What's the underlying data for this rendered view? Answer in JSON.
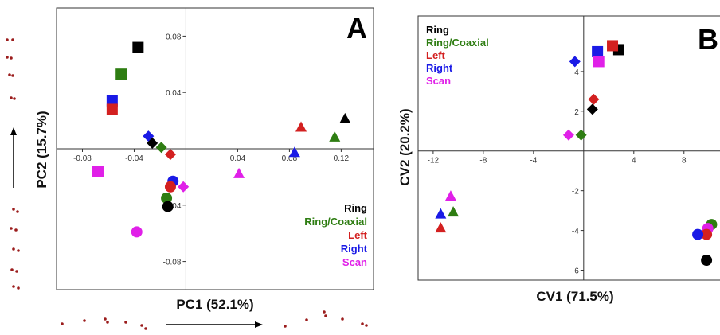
{
  "chart_data": [
    {
      "type": "scatter",
      "panel_label": "A",
      "xlabel": "PC1 (52.1%)",
      "ylabel": "PC2 (15.7%)",
      "xlim": [
        -0.1,
        0.145
      ],
      "ylim": [
        -0.1,
        0.1
      ],
      "x_ticks": [
        -0.08,
        -0.04,
        0.04,
        0.08,
        0.12
      ],
      "x_tick_labels": [
        "-0.08",
        "-0.04",
        "0.04",
        "0.08",
        "0.12"
      ],
      "y_ticks": [
        0.08,
        0.04,
        -0.04,
        -0.08
      ],
      "y_tick_labels": [
        "0.08",
        "0.04",
        "-0.04",
        "-0.08"
      ],
      "legend_position": "bottom-right",
      "legend": [
        {
          "label": "Ring",
          "color": "#000000"
        },
        {
          "label": "Ring/Coaxial",
          "color": "#2e7d12"
        },
        {
          "label": "Left",
          "color": "#d32020"
        },
        {
          "label": "Right",
          "color": "#1a1ae6"
        },
        {
          "label": "Scan",
          "color": "#e020e8"
        }
      ],
      "points": [
        {
          "group": "Ring",
          "shape": "square",
          "x": -0.037,
          "y": 0.072
        },
        {
          "group": "Ring/Coaxial",
          "shape": "square",
          "x": -0.05,
          "y": 0.053
        },
        {
          "group": "Right",
          "shape": "square",
          "x": -0.057,
          "y": 0.034
        },
        {
          "group": "Left",
          "shape": "square",
          "x": -0.057,
          "y": 0.028
        },
        {
          "group": "Scan",
          "shape": "square",
          "x": -0.068,
          "y": -0.016
        },
        {
          "group": "Right",
          "shape": "diamond",
          "x": -0.029,
          "y": 0.009
        },
        {
          "group": "Ring",
          "shape": "diamond",
          "x": -0.026,
          "y": 0.004
        },
        {
          "group": "Ring/Coaxial",
          "shape": "diamond",
          "x": -0.019,
          "y": 0.001
        },
        {
          "group": "Left",
          "shape": "diamond",
          "x": -0.012,
          "y": -0.004
        },
        {
          "group": "Scan",
          "shape": "diamond",
          "x": -0.002,
          "y": -0.027
        },
        {
          "group": "Right",
          "shape": "circle",
          "x": -0.01,
          "y": -0.023
        },
        {
          "group": "Left",
          "shape": "circle",
          "x": -0.012,
          "y": -0.027
        },
        {
          "group": "Ring/Coaxial",
          "shape": "circle",
          "x": -0.015,
          "y": -0.035
        },
        {
          "group": "Ring",
          "shape": "circle",
          "x": -0.014,
          "y": -0.041
        },
        {
          "group": "Scan",
          "shape": "circle",
          "x": -0.038,
          "y": -0.059
        },
        {
          "group": "Scan",
          "shape": "triangle",
          "x": 0.041,
          "y": -0.018
        },
        {
          "group": "Left",
          "shape": "triangle",
          "x": 0.089,
          "y": 0.015
        },
        {
          "group": "Right",
          "shape": "triangle",
          "x": 0.084,
          "y": -0.003
        },
        {
          "group": "Ring/Coaxial",
          "shape": "triangle",
          "x": 0.115,
          "y": 0.008
        },
        {
          "group": "Ring",
          "shape": "triangle",
          "x": 0.123,
          "y": 0.021
        }
      ]
    },
    {
      "type": "scatter",
      "panel_label": "B",
      "xlabel": "CV1 (71.5%)",
      "ylabel": "CV2 (20.2%)",
      "xlim": [
        -13.2,
        11
      ],
      "ylim": [
        -6.5,
        6.8
      ],
      "x_ticks": [
        -12,
        -8,
        -4,
        4,
        8
      ],
      "x_tick_labels": [
        "-12",
        "-8",
        "-4",
        "4",
        "8"
      ],
      "y_ticks": [
        4,
        2,
        -2,
        -4,
        -6
      ],
      "y_tick_labels": [
        "4",
        "2",
        "-2",
        "-4",
        "-6"
      ],
      "legend_position": "top-left",
      "legend": [
        {
          "label": "Ring",
          "color": "#000000"
        },
        {
          "label": "Ring/Coaxial",
          "color": "#2e7d12"
        },
        {
          "label": "Left",
          "color": "#d32020"
        },
        {
          "label": "Right",
          "color": "#1a1ae6"
        },
        {
          "label": "Scan",
          "color": "#e020e8"
        }
      ],
      "points": [
        {
          "group": "Ring",
          "shape": "square",
          "x": 2.8,
          "y": 5.1
        },
        {
          "group": "Left",
          "shape": "square",
          "x": 2.3,
          "y": 5.3
        },
        {
          "group": "Right",
          "shape": "square",
          "x": 1.1,
          "y": 5.0
        },
        {
          "group": "Scan",
          "shape": "square",
          "x": 1.2,
          "y": 4.5
        },
        {
          "group": "Right",
          "shape": "diamond",
          "x": -0.7,
          "y": 4.5
        },
        {
          "group": "Left",
          "shape": "diamond",
          "x": 0.8,
          "y": 2.6
        },
        {
          "group": "Ring",
          "shape": "diamond",
          "x": 0.7,
          "y": 2.1
        },
        {
          "group": "Scan",
          "shape": "diamond",
          "x": -1.2,
          "y": 0.8
        },
        {
          "group": "Ring/Coaxial",
          "shape": "diamond",
          "x": -0.2,
          "y": 0.8
        },
        {
          "group": "Scan",
          "shape": "triangle",
          "x": -10.6,
          "y": -2.3
        },
        {
          "group": "Ring/Coaxial",
          "shape": "triangle",
          "x": -10.4,
          "y": -3.1
        },
        {
          "group": "Right",
          "shape": "triangle",
          "x": -11.4,
          "y": -3.2
        },
        {
          "group": "Left",
          "shape": "triangle",
          "x": -11.4,
          "y": -3.9
        },
        {
          "group": "Ring/Coaxial",
          "shape": "circle",
          "x": 10.2,
          "y": -3.7
        },
        {
          "group": "Scan",
          "shape": "circle",
          "x": 9.9,
          "y": -3.9
        },
        {
          "group": "Left",
          "shape": "circle",
          "x": 9.8,
          "y": -4.2
        },
        {
          "group": "Right",
          "shape": "circle",
          "x": 9.1,
          "y": -4.2
        },
        {
          "group": "Ring",
          "shape": "circle",
          "x": 9.8,
          "y": -5.5
        }
      ]
    }
  ],
  "group_colors": {
    "Ring": "#000000",
    "Ring/Coaxial": "#2e7d12",
    "Left": "#d32020",
    "Right": "#1a1ae6",
    "Scan": "#e020e8"
  },
  "decor": {
    "landmark_color": "#9b1c1c",
    "arrow_color": "#000000"
  }
}
